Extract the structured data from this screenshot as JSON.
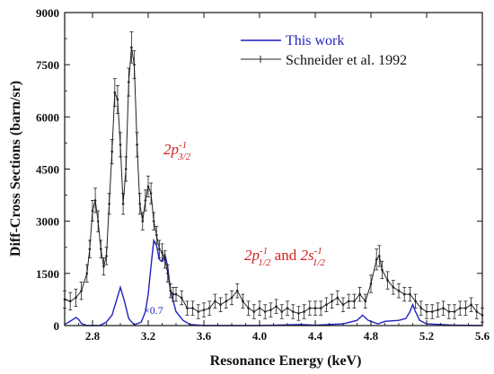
{
  "chart_data": {
    "type": "line",
    "xlabel": "Resonance Energy (keV)",
    "ylabel": "Diff-Cross Sections (barn/sr)",
    "xlim": [
      2.6,
      5.6
    ],
    "ylim": [
      0,
      9000
    ],
    "x_ticks": [
      "2.8",
      "3.2",
      "3.6",
      "4.0",
      "4.4",
      "4.8",
      "5.2",
      "5.6"
    ],
    "y_ticks": [
      "0",
      "1500",
      "3000",
      "4500",
      "6000",
      "7500",
      "9000"
    ],
    "legend_position": "top-right",
    "colors": {
      "this_work": "#1f1fbf",
      "schneider": "#222222",
      "annotation": "#d42020"
    },
    "annotations": {
      "scale_factor": "×0.7",
      "peak_3_2": {
        "base": "2p",
        "sup": "-1",
        "sub": "3/2"
      },
      "peak_1_2": {
        "base1": "2p",
        "sup1": "-1",
        "sub1": "1/2",
        "joiner": " and ",
        "base2": "2s",
        "sup2": "-1",
        "sub2": "1/2"
      }
    },
    "series": [
      {
        "name": "This work",
        "style": "line",
        "x": [
          2.6,
          2.65,
          2.68,
          2.7,
          2.72,
          2.76,
          2.8,
          2.85,
          2.9,
          2.94,
          2.97,
          3.0,
          3.03,
          3.06,
          3.1,
          3.15,
          3.18,
          3.2,
          3.22,
          3.24,
          3.26,
          3.28,
          3.3,
          3.32,
          3.34,
          3.36,
          3.4,
          3.45,
          3.5,
          3.6,
          3.8,
          4.0,
          4.2,
          4.3,
          4.4,
          4.6,
          4.7,
          4.74,
          4.78,
          4.85,
          4.9,
          5.0,
          5.05,
          5.08,
          5.1,
          5.12,
          5.15,
          5.2,
          5.4,
          5.6
        ],
        "y": [
          30,
          150,
          230,
          180,
          60,
          0,
          0,
          0,
          100,
          300,
          700,
          1100,
          700,
          200,
          20,
          100,
          400,
          900,
          1700,
          2450,
          2300,
          1900,
          1850,
          2050,
          1700,
          1000,
          400,
          150,
          30,
          0,
          0,
          0,
          20,
          30,
          10,
          50,
          150,
          300,
          150,
          50,
          120,
          150,
          200,
          400,
          600,
          400,
          150,
          50,
          10,
          0
        ]
      },
      {
        "name": "Schneider et al. 1992",
        "style": "line-with-errorbars",
        "x": [
          2.6,
          2.64,
          2.68,
          2.72,
          2.76,
          2.78,
          2.8,
          2.82,
          2.84,
          2.86,
          2.88,
          2.9,
          2.92,
          2.94,
          2.96,
          2.98,
          3.0,
          3.02,
          3.04,
          3.06,
          3.08,
          3.1,
          3.12,
          3.14,
          3.16,
          3.18,
          3.2,
          3.22,
          3.24,
          3.26,
          3.28,
          3.3,
          3.32,
          3.34,
          3.36,
          3.38,
          3.4,
          3.44,
          3.48,
          3.52,
          3.56,
          3.6,
          3.64,
          3.68,
          3.72,
          3.76,
          3.8,
          3.84,
          3.88,
          3.92,
          3.96,
          4.0,
          4.04,
          4.08,
          4.12,
          4.16,
          4.2,
          4.24,
          4.28,
          4.32,
          4.36,
          4.4,
          4.44,
          4.48,
          4.52,
          4.56,
          4.6,
          4.64,
          4.68,
          4.72,
          4.76,
          4.8,
          4.84,
          4.86,
          4.88,
          4.92,
          4.96,
          5.0,
          5.04,
          5.08,
          5.12,
          5.16,
          5.2,
          5.24,
          5.28,
          5.32,
          5.36,
          5.4,
          5.44,
          5.48,
          5.52,
          5.56,
          5.6
        ],
        "y": [
          750,
          700,
          800,
          1000,
          1500,
          2200,
          3300,
          3600,
          3000,
          2200,
          1700,
          2000,
          3500,
          5000,
          6700,
          6500,
          5200,
          3500,
          4500,
          7000,
          8000,
          7500,
          5200,
          3500,
          3000,
          3600,
          4000,
          3800,
          3000,
          2600,
          2200,
          2100,
          1900,
          1500,
          1000,
          900,
          900,
          800,
          500,
          500,
          400,
          450,
          500,
          700,
          600,
          700,
          800,
          1000,
          700,
          500,
          400,
          500,
          400,
          450,
          550,
          400,
          500,
          400,
          350,
          400,
          500,
          500,
          500,
          600,
          700,
          800,
          600,
          700,
          700,
          900,
          700,
          1200,
          1900,
          2000,
          1600,
          1300,
          1100,
          1000,
          900,
          900,
          700,
          500,
          400,
          400,
          450,
          500,
          400,
          400,
          500,
          500,
          600,
          400,
          300
        ],
        "err": [
          250,
          250,
          250,
          250,
          250,
          250,
          300,
          350,
          300,
          250,
          250,
          250,
          300,
          350,
          400,
          400,
          350,
          300,
          350,
          400,
          450,
          400,
          350,
          300,
          250,
          300,
          300,
          300,
          250,
          250,
          250,
          250,
          250,
          250,
          200,
          200,
          200,
          200,
          200,
          200,
          200,
          200,
          200,
          200,
          200,
          200,
          200,
          200,
          200,
          200,
          200,
          200,
          200,
          200,
          200,
          200,
          200,
          200,
          200,
          200,
          200,
          200,
          200,
          200,
          200,
          200,
          200,
          200,
          200,
          200,
          200,
          250,
          300,
          300,
          250,
          250,
          200,
          200,
          200,
          200,
          200,
          200,
          200,
          200,
          200,
          200,
          200,
          200,
          200,
          200,
          200,
          200,
          200
        ]
      }
    ]
  }
}
